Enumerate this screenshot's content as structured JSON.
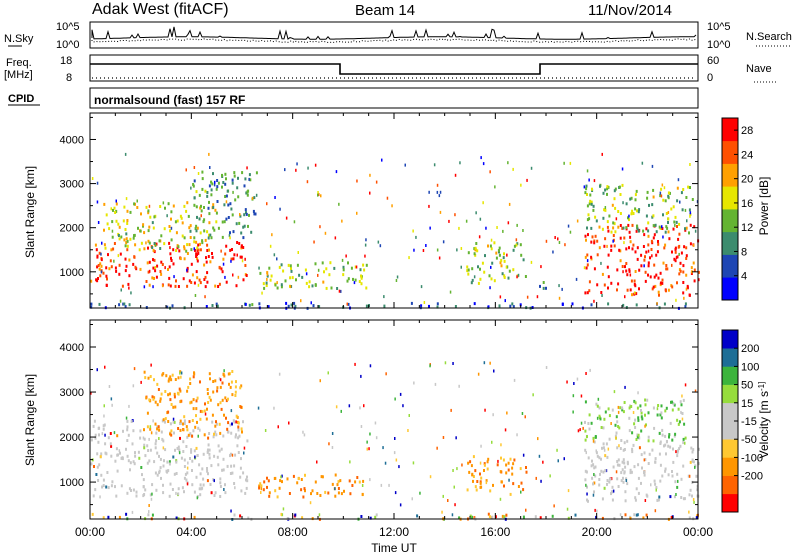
{
  "header": {
    "site": "Adak West (fitACF)",
    "beam": "Beam 14",
    "date": "11/Nov/2014"
  },
  "noise_panel": {
    "left_label": "N.Sky",
    "right_label": "N.Search",
    "left_ticks": [
      "10^5",
      "10^0"
    ],
    "right_ticks": [
      "10^5",
      "10^0"
    ]
  },
  "freq_panel": {
    "left_label_line1": "Freq.",
    "left_label_line2": "[MHz]",
    "right_label": "Nave",
    "left_ticks": [
      "18",
      "8"
    ],
    "right_ticks": [
      "60",
      "0"
    ],
    "cpid_label": "CPID",
    "cpid_value": "normalsound (fast) 157 RF"
  },
  "colors": {
    "power_scale": [
      "#0000ff",
      "#1e46b4",
      "#3c8c6e",
      "#64b432",
      "#e6e600",
      "#ffa000",
      "#ff5000",
      "#ff0000"
    ],
    "velocity_scale": [
      "#ff0000",
      "#ff6400",
      "#ff9600",
      "#ffc832",
      "#c8c8c8",
      "#c8c8c8",
      "#96dc3c",
      "#3cb43c",
      "#1e6e96",
      "#0000c8"
    ],
    "ground_scatter": "#c8c8c8"
  },
  "chart_data": [
    {
      "type": "heatmap",
      "panel": "power",
      "xlabel": "",
      "ylabel": "Slant Range [km]",
      "x_ticks": [
        "00:00",
        "04:00",
        "08:00",
        "12:00",
        "16:00",
        "20:00",
        "00:00"
      ],
      "y_ticks": [
        1000,
        2000,
        3000,
        4000
      ],
      "xlim_hours": [
        0,
        24
      ],
      "ylim_km": [
        180,
        4600
      ],
      "colorbar_label": "Power [dB]",
      "colorbar_ticks": [
        4,
        8,
        12,
        16,
        20,
        24,
        28
      ],
      "colorbar_range": [
        0,
        30
      ],
      "regions": [
        {
          "t": [
            0.0,
            6.2
          ],
          "r": [
            700,
            1700
          ],
          "level": 0.93
        },
        {
          "t": [
            0.5,
            5.0
          ],
          "r": [
            1500,
            2600
          ],
          "level": 0.55
        },
        {
          "t": [
            4.0,
            6.6
          ],
          "r": [
            1800,
            3300
          ],
          "level": 0.3
        },
        {
          "t": [
            6.6,
            11.0
          ],
          "r": [
            650,
            1250
          ],
          "level": 0.45
        },
        {
          "t": [
            14.8,
            17.2
          ],
          "r": [
            750,
            1700
          ],
          "level": 0.5
        },
        {
          "t": [
            17.5,
            18.3
          ],
          "r": [
            600,
            800
          ],
          "level": 0.2
        },
        {
          "t": [
            19.5,
            24.0
          ],
          "r": [
            500,
            2100
          ],
          "level": 0.95
        },
        {
          "t": [
            19.5,
            23.8
          ],
          "r": [
            1900,
            3000
          ],
          "level": 0.45
        },
        {
          "t": [
            0.0,
            24.0
          ],
          "r": [
            200,
            320
          ],
          "level": 0.15
        }
      ]
    },
    {
      "type": "heatmap",
      "panel": "velocity",
      "xlabel": "Time UT",
      "ylabel": "Slant Range [km]",
      "x_ticks": [
        "00:00",
        "04:00",
        "08:00",
        "12:00",
        "16:00",
        "20:00",
        "00:00"
      ],
      "y_ticks": [
        1000,
        2000,
        3000,
        4000
      ],
      "xlim_hours": [
        0,
        24
      ],
      "ylim_km": [
        180,
        4600
      ],
      "colorbar_label": "Velocity [m s^-1]",
      "colorbar_ticks": [
        200,
        100,
        50,
        15,
        -15,
        -50,
        -100,
        -200
      ],
      "regions": [
        {
          "t": [
            0.0,
            6.2
          ],
          "r": [
            700,
            2400
          ],
          "kind": "ground"
        },
        {
          "t": [
            2.0,
            6.0
          ],
          "r": [
            2000,
            3500
          ],
          "kind": "orange"
        },
        {
          "t": [
            6.6,
            11.0
          ],
          "r": [
            700,
            1200
          ],
          "kind": "orange"
        },
        {
          "t": [
            14.8,
            17.2
          ],
          "r": [
            750,
            1600
          ],
          "kind": "orange"
        },
        {
          "t": [
            19.5,
            24.0
          ],
          "r": [
            600,
            2100
          ],
          "kind": "ground"
        },
        {
          "t": [
            19.5,
            23.5
          ],
          "r": [
            1900,
            2900
          ],
          "kind": "green"
        },
        {
          "t": [
            0.0,
            24.0
          ],
          "r": [
            200,
            320
          ],
          "kind": "mixed"
        }
      ]
    }
  ]
}
